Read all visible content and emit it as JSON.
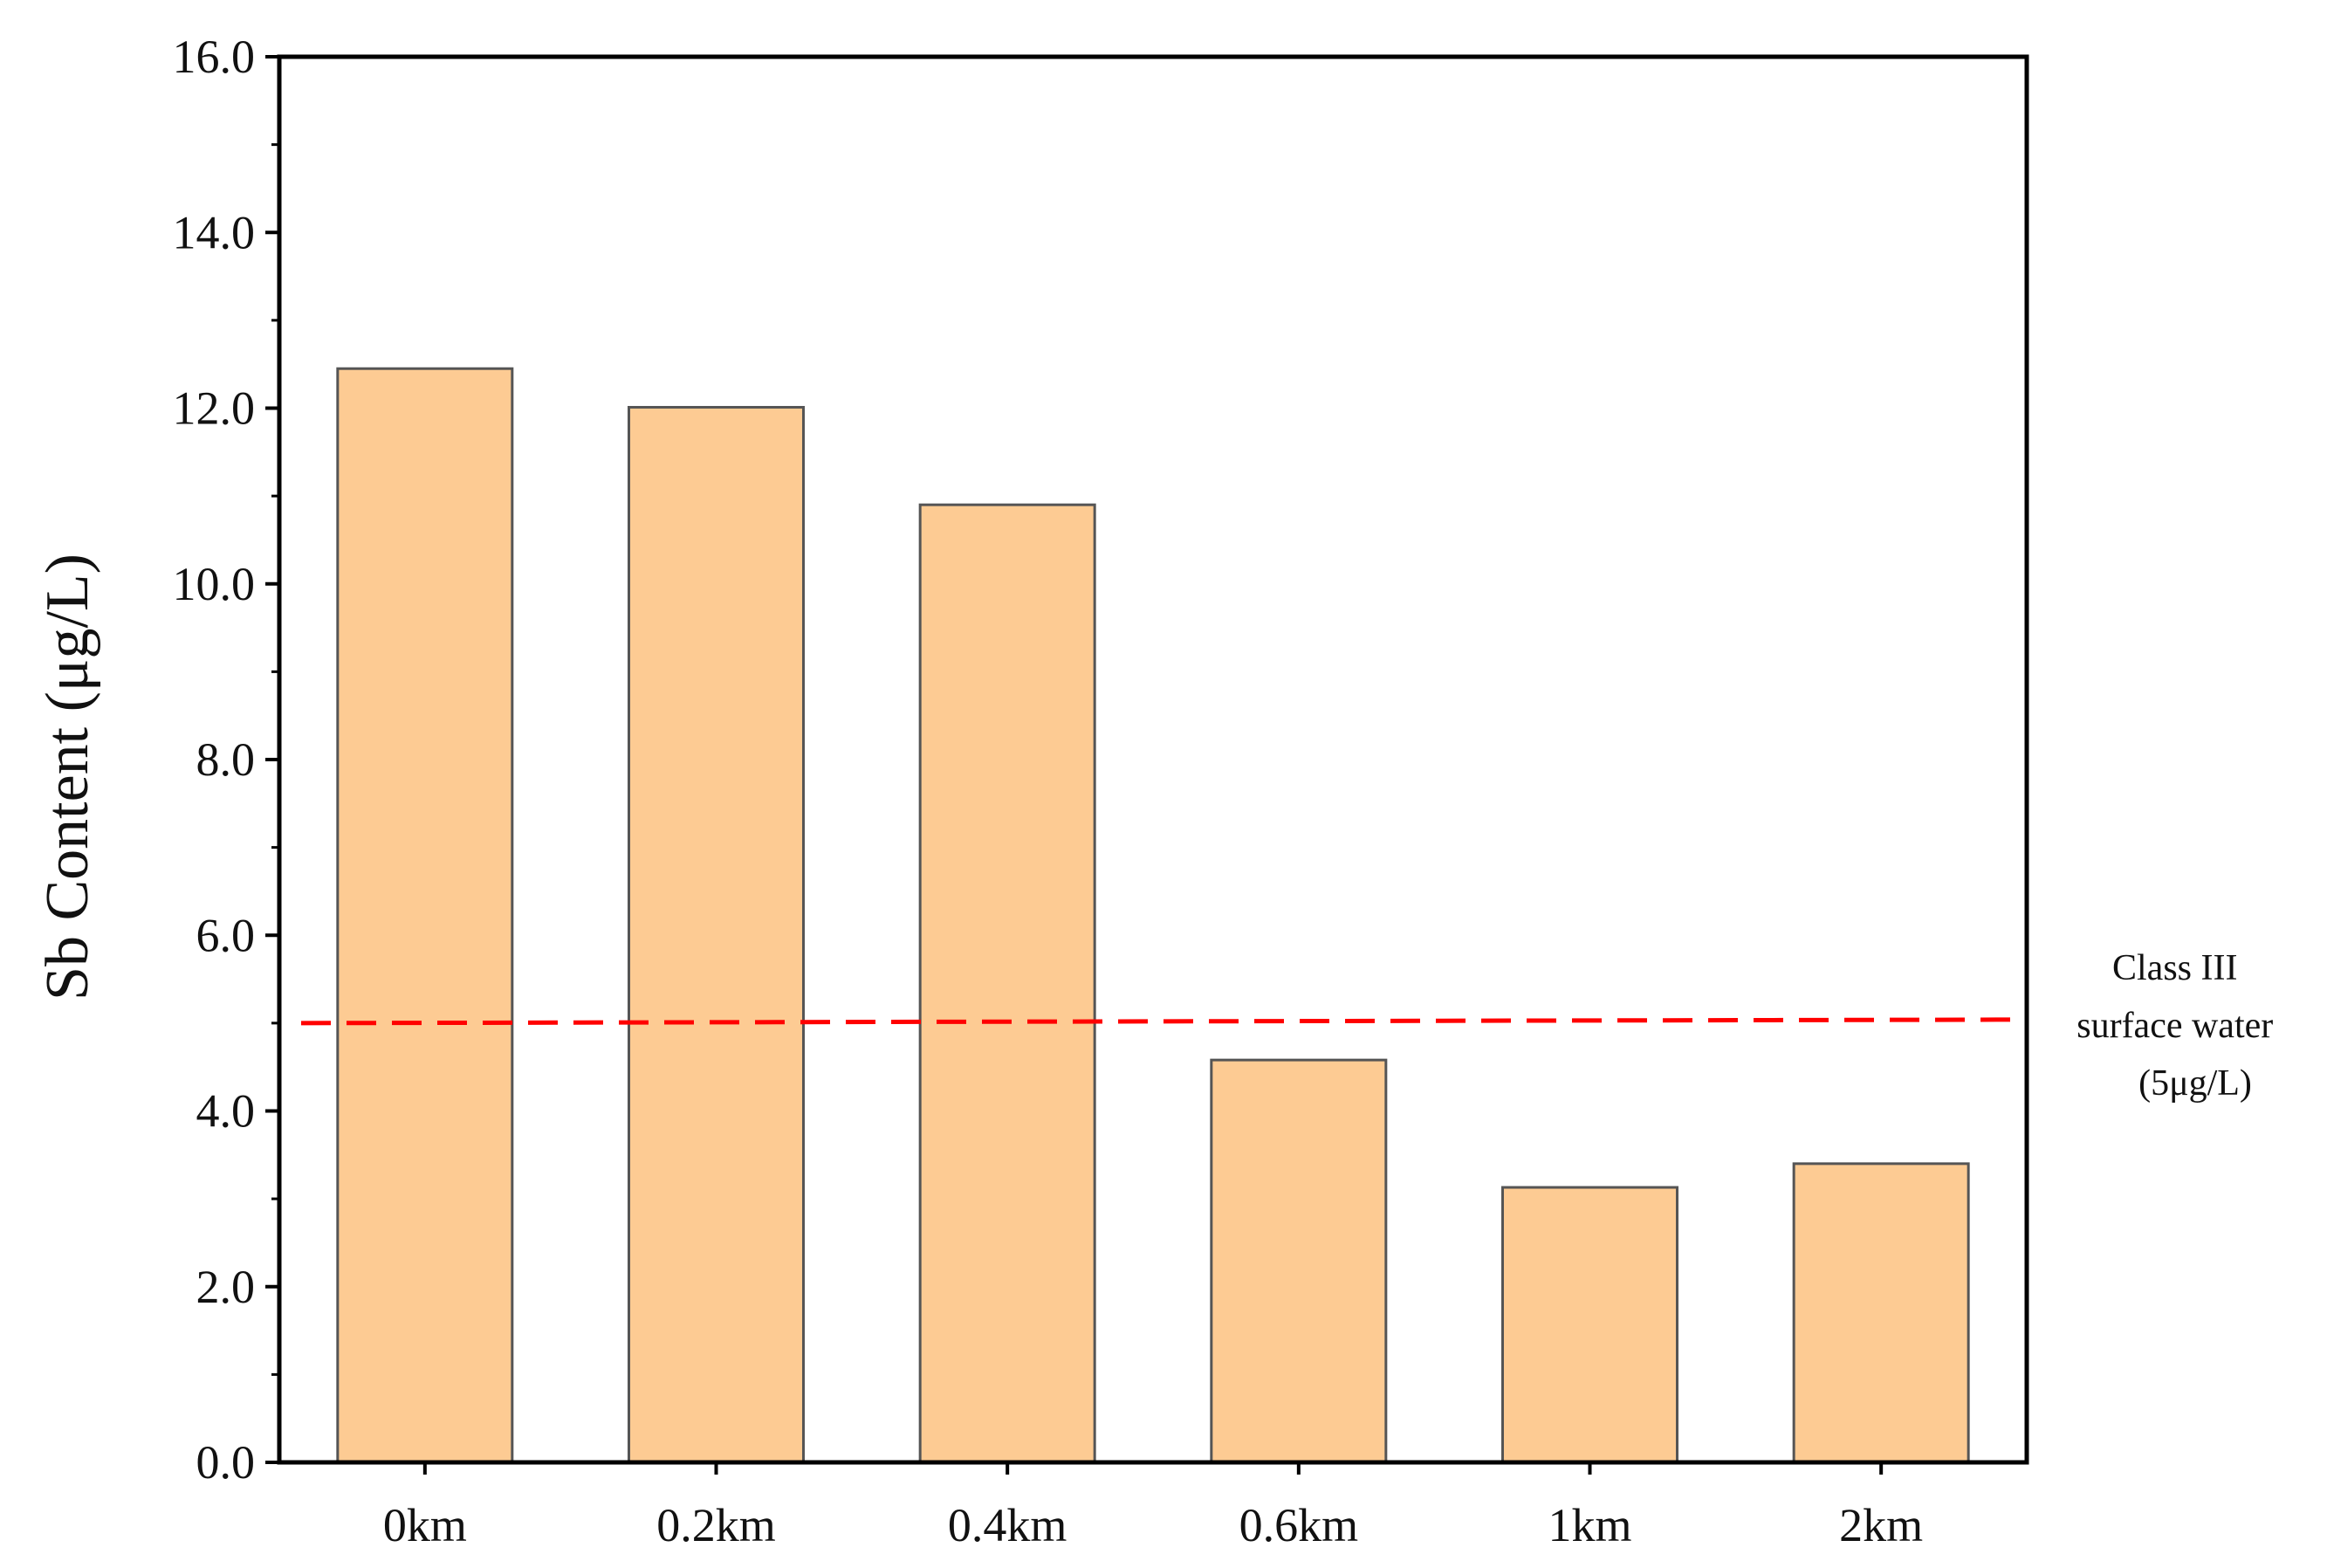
{
  "chart_data": {
    "type": "bar",
    "title": "",
    "xlabel": "",
    "ylabel": "Sb Content (μg/L)",
    "categories": [
      "0km",
      "0.2km",
      "0.4km",
      "0.6km",
      "1km",
      "2km"
    ],
    "values": [
      12.45,
      12.01,
      10.9,
      4.58,
      3.13,
      3.4
    ],
    "ylim": [
      0,
      16
    ],
    "yticks": [
      "0.0",
      "2.0",
      "4.0",
      "6.0",
      "8.0",
      "10.0",
      "12.0",
      "14.0",
      "16.0"
    ],
    "grid": false,
    "bar_color": "#fdcb93",
    "bar_edge_color": "#555555",
    "reference_line": {
      "value": 5,
      "color": "#ff0000",
      "style": "dashed",
      "label_lines": [
        "Class III",
        "surface water",
        "(5μg/L)"
      ]
    }
  }
}
